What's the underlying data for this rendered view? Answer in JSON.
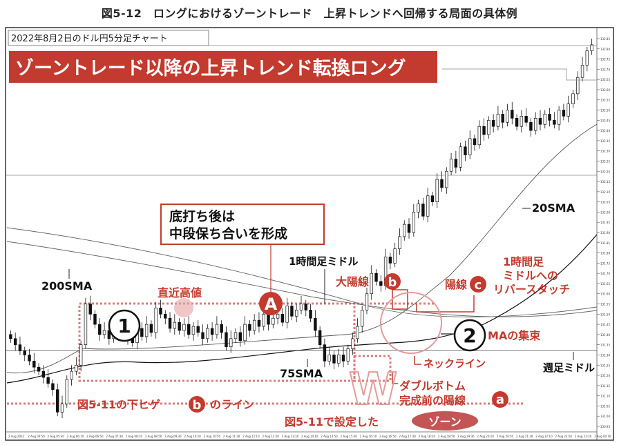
{
  "figure_title": "図5-12　ロングにおけるゾーントレード　上昇トレンドへ回帰する局面の具体例",
  "chart_data": {
    "type": "candlestick",
    "title": "2022年8月2日のドル円5分足チャート",
    "headline": "ゾーントレード以降の上昇トレンド転換ロング",
    "ylim": [
      130.95,
      132.85
    ],
    "y_ticks": [
      "132.85",
      "132.80",
      "132.75",
      "132.70",
      "132.65",
      "132.60",
      "132.55",
      "132.50",
      "132.45",
      "132.40",
      "132.35",
      "132.30",
      "132.25",
      "132.20",
      "132.15",
      "132.10",
      "132.05",
      "132.00",
      "131.95",
      "131.90",
      "131.85",
      "131.80",
      "131.75",
      "131.70",
      "131.65",
      "131.60",
      "131.55",
      "131.50",
      "131.45",
      "131.40",
      "131.35",
      "131.30",
      "131.25",
      "131.20",
      "131.15",
      "131.10",
      "131.05",
      "131.00",
      "130.95"
    ],
    "x_ticks": [
      "2 Aug 2022",
      "2 Aug 04:50",
      "2 Aug 05:30",
      "2 Aug 06:10",
      "2 Aug 06:50",
      "2 Aug 07:30",
      "2 Aug 08:10",
      "2 Aug 08:50",
      "2 Aug 09:30",
      "2 Aug 10:10",
      "2 Aug 10:50",
      "2 Aug 11:30",
      "2 Aug 12:10",
      "2 Aug 12:50",
      "2 Aug 13:30",
      "2 Aug 14:10",
      "2 Aug 14:50",
      "2 Aug 15:30",
      "2 Aug 16:10",
      "2 Aug 16:50",
      "2 Aug 17:30",
      "2 Aug 18:10",
      "2 Aug 18:50",
      "2 Aug 19:30",
      "2 Aug 20:10",
      "2 Aug 20:50",
      "2 Aug 21:30",
      "2 Aug 22:10",
      "2 Aug 22:50",
      "2 Aug 23:30",
      "3 Aug 00:10"
    ],
    "close": [
      131.38,
      131.35,
      131.32,
      131.3,
      131.27,
      131.24,
      131.22,
      131.19,
      131.16,
      131.13,
      131.02,
      131.06,
      131.18,
      131.22,
      131.25,
      131.35,
      131.55,
      131.5,
      131.45,
      131.4,
      131.42,
      131.38,
      131.44,
      131.4,
      131.42,
      131.38,
      131.36,
      131.43,
      131.39,
      131.45,
      131.41,
      131.53,
      131.5,
      131.48,
      131.43,
      131.46,
      131.42,
      131.45,
      131.4,
      131.44,
      131.41,
      131.38,
      131.43,
      131.4,
      131.45,
      131.41,
      131.34,
      131.38,
      131.41,
      131.37,
      131.45,
      131.42,
      131.47,
      131.44,
      131.5,
      131.45,
      131.48,
      131.5,
      131.46,
      131.54,
      131.49,
      131.52,
      131.55,
      131.52,
      131.48,
      131.42,
      131.35,
      131.27,
      131.3,
      131.26,
      131.3,
      131.27,
      131.33,
      131.38,
      131.44,
      131.52,
      131.6,
      131.7,
      131.66,
      131.64,
      131.78,
      131.75,
      131.82,
      131.88,
      131.94,
      131.9,
      132.0,
      132.04,
      131.98,
      132.08,
      132.05,
      132.16,
      132.12,
      132.2,
      132.26,
      132.22,
      132.32,
      132.28,
      132.36,
      132.33,
      132.42,
      132.38,
      132.45,
      132.42,
      132.48,
      132.44,
      132.5,
      132.46,
      132.42,
      132.47,
      132.44,
      132.4,
      132.46,
      132.43,
      132.48,
      132.45,
      132.43,
      132.5,
      132.47,
      132.53,
      132.58,
      132.66,
      132.72,
      132.79,
      132.82
    ],
    "overlays": [
      "20SMA",
      "75SMA",
      "200SMA",
      "1時間足ミドル",
      "週足ミドル"
    ],
    "annotations": {
      "consolidation": "底打ち後は\n中段保ち合いを形成",
      "hourly_mid": "1時間足ミドル",
      "sma200": "200SMA",
      "sma20": "20SMA",
      "sma75": "75SMA",
      "recent_high": "直近高値",
      "marker_1": "①",
      "marker_A": "A",
      "big_bull": "大陽線",
      "bull": "陽線",
      "marker_b": "b",
      "marker_c": "c",
      "retest": "1時間足\nミドルへの\nリバースタッチ",
      "marker_2": "②",
      "ma_converge": "MAの集束",
      "neckline": "ネックライン",
      "double_bottom": "ダブルボトム\n完成前の陽線",
      "marker_a": "a",
      "weekly_mid": "週足ミドル",
      "wick_line_pre": "図5-11の下ヒゲ",
      "wick_line_post": "のライン",
      "zone_set": "図5-11で設定した",
      "zone": "ゾーン",
      "w_letter": "W"
    }
  }
}
